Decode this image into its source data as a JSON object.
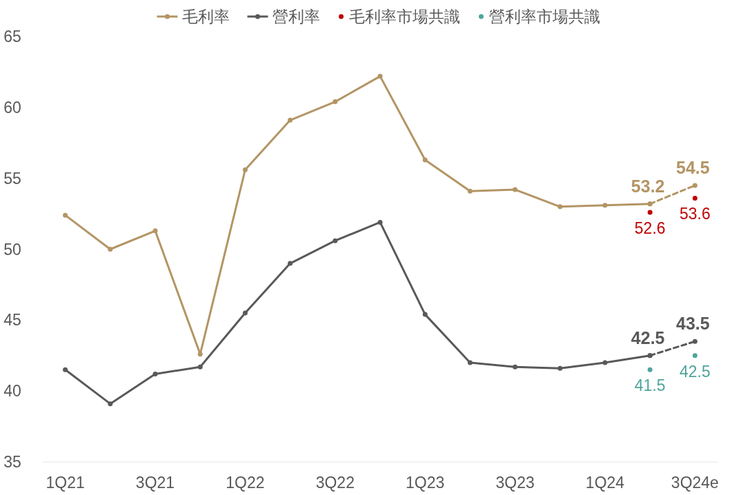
{
  "chart_data": {
    "type": "line",
    "categories": [
      "1Q21",
      null,
      "3Q21",
      null,
      "1Q22",
      null,
      "3Q22",
      null,
      "1Q23",
      null,
      "3Q23",
      null,
      "1Q24",
      null,
      "3Q24e"
    ],
    "ylim": [
      35,
      65
    ],
    "yticks": [
      35,
      40,
      45,
      50,
      55,
      60,
      65
    ],
    "grid": false,
    "legend": "top",
    "marker": "circle",
    "series": [
      {
        "name": "毛利率",
        "color": "#b39564",
        "values": [
          52.4,
          50.0,
          51.3,
          42.6,
          55.6,
          59.1,
          60.4,
          62.2,
          56.3,
          54.1,
          54.2,
          53.0,
          53.1,
          53.2,
          null
        ]
      },
      {
        "name": "營利率",
        "color": "#595959",
        "values": [
          41.5,
          39.1,
          41.2,
          41.7,
          45.5,
          49.0,
          50.6,
          51.9,
          45.4,
          42.0,
          41.7,
          41.6,
          42.0,
          42.5,
          null
        ]
      },
      {
        "color": "#b39564",
        "line_style": "dashed",
        "values": [
          null,
          null,
          null,
          null,
          null,
          null,
          null,
          null,
          null,
          null,
          null,
          null,
          null,
          53.2,
          54.5
        ],
        "value_labels": [
          null,
          null,
          null,
          null,
          null,
          null,
          null,
          null,
          null,
          null,
          null,
          null,
          null,
          "53.2",
          "54.5"
        ]
      },
      {
        "color": "#595959",
        "line_style": "dashed",
        "values": [
          null,
          null,
          null,
          null,
          null,
          null,
          null,
          null,
          null,
          null,
          null,
          null,
          null,
          42.5,
          43.5
        ],
        "value_labels": [
          null,
          null,
          null,
          null,
          null,
          null,
          null,
          null,
          null,
          null,
          null,
          null,
          null,
          "42.5",
          "43.5"
        ]
      },
      {
        "name": "毛利率市場共識",
        "type": "scatter",
        "color": "#c00000",
        "values": [
          null,
          null,
          null,
          null,
          null,
          null,
          null,
          null,
          null,
          null,
          null,
          null,
          null,
          52.6,
          53.6
        ],
        "value_labels": [
          null,
          null,
          null,
          null,
          null,
          null,
          null,
          null,
          null,
          null,
          null,
          null,
          null,
          "52.6",
          "53.6"
        ]
      },
      {
        "name": "營利率市場共識",
        "type": "scatter",
        "color": "#4ea59c",
        "values": [
          null,
          null,
          null,
          null,
          null,
          null,
          null,
          null,
          null,
          null,
          null,
          null,
          null,
          41.5,
          42.5
        ],
        "value_labels": [
          null,
          null,
          null,
          null,
          null,
          null,
          null,
          null,
          null,
          null,
          null,
          null,
          null,
          "41.5",
          "42.5"
        ]
      }
    ]
  }
}
